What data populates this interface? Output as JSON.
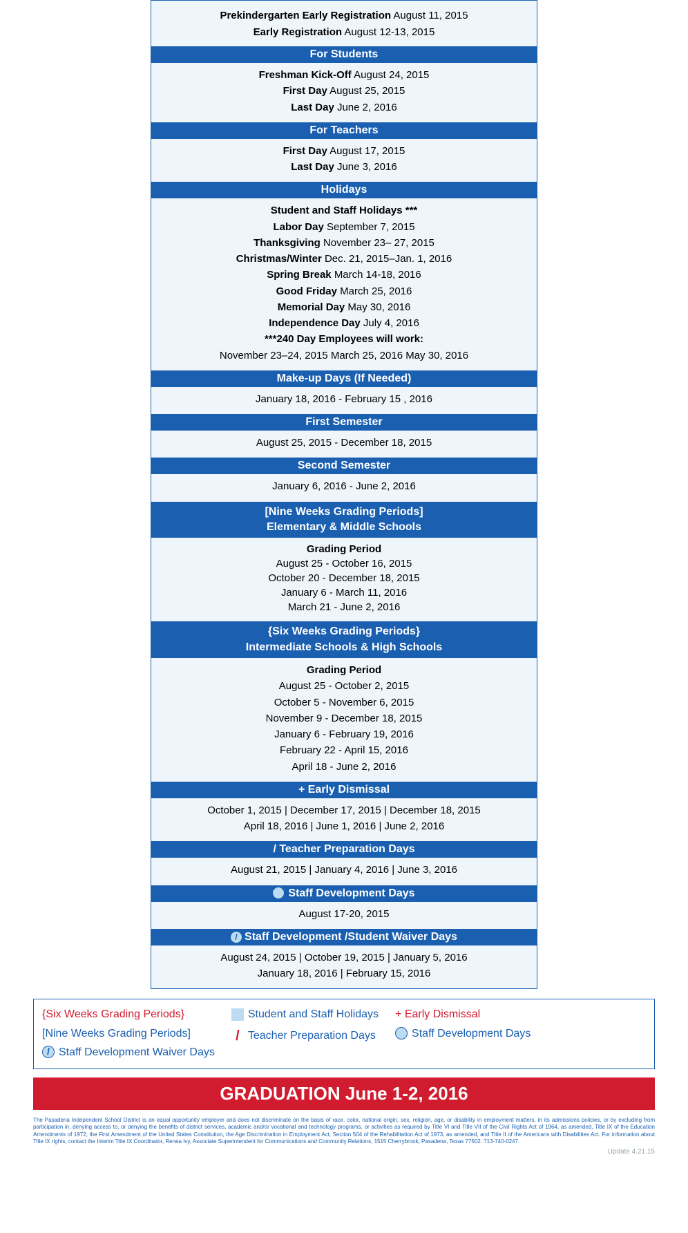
{
  "colors": {
    "header_bg": "#1a5fb0",
    "header_text": "#ffffff",
    "body_bg": "#eef5fb",
    "accent_red": "#d11b2e",
    "swatch_light_blue": "#bcdcf2",
    "text_blue": "#1a5fb0",
    "fineprint": "#1a5fb0",
    "update_gray": "#9aa5af"
  },
  "top": {
    "line1_label": "Prekindergarten Early Registration",
    "line1_value": "August 11, 2015",
    "line2_label": "Early Registration",
    "line2_value": "August 12-13, 2015"
  },
  "for_students": {
    "title": "For Students",
    "rows": [
      {
        "label": "Freshman Kick-Off",
        "value": "August 24, 2015"
      },
      {
        "label": "First Day",
        "value": "August 25, 2015"
      },
      {
        "label": "Last Day",
        "value": "June 2, 2016"
      }
    ]
  },
  "for_teachers": {
    "title": "For Teachers",
    "rows": [
      {
        "label": "First Day",
        "value": "August 17, 2015"
      },
      {
        "label": "Last Day",
        "value": "June 3, 2016"
      }
    ]
  },
  "holidays": {
    "title": "Holidays",
    "subhead": "Student and Staff Holidays ***",
    "rows": [
      {
        "label": "Labor Day",
        "value": "September 7, 2015"
      },
      {
        "label": "Thanksgiving",
        "value": "November 23– 27, 2015"
      },
      {
        "label": "Christmas/Winter",
        "value": "Dec. 21, 2015–Jan. 1, 2016"
      },
      {
        "label": "Spring Break",
        "value": "March 14-18, 2016"
      },
      {
        "label": "Good Friday",
        "value": "March 25, 2016"
      },
      {
        "label": "Memorial Day",
        "value": "May 30, 2016"
      },
      {
        "label": "Independence Day",
        "value": "July 4, 2016"
      }
    ],
    "note_label": "***240 Day Employees will work:",
    "note_value": "November 23–24, 2015  March 25, 2016  May 30, 2016"
  },
  "makeup": {
    "title": "Make-up Days (If Needed)",
    "body": "January 18, 2016 - February 15 , 2016"
  },
  "first_sem": {
    "title": "First Semester",
    "body": "August 25, 2015 - December 18, 2015"
  },
  "second_sem": {
    "title": "Second Semester",
    "body": "January 6, 2016 - June 2, 2016"
  },
  "nine_weeks": {
    "title_line1": "[Nine Weeks Grading Periods]",
    "title_line2": "Elementary & Middle Schools",
    "subhead": "Grading Period",
    "rows": [
      "August 25 - October 16, 2015",
      "October 20 - December 18, 2015",
      "January 6 - March 11, 2016",
      "March 21 - June 2, 2016"
    ]
  },
  "six_weeks": {
    "title_line1": "{Six Weeks Grading Periods}",
    "title_line2": "Intermediate Schools & High Schools",
    "subhead": "Grading Period",
    "rows": [
      "August 25 - October 2, 2015",
      "October 5 - November 6, 2015",
      "November 9 - December 18, 2015",
      "January 6  - February 19, 2016",
      "February 22 - April 15, 2016",
      "April 18 - June 2, 2016"
    ]
  },
  "early_dismissal": {
    "title": "+ Early Dismissal",
    "rows": [
      "October 1, 2015 | December 17, 2015 | December 18, 2015",
      "April 18, 2016 | June 1, 2016 | June 2, 2016"
    ]
  },
  "teacher_prep": {
    "title": "/ Teacher Preparation Days",
    "body": "August 21, 2015  |  January 4, 2016  |  June 3, 2016"
  },
  "staff_dev": {
    "title": "Staff Development Days",
    "body": "August 17-20, 2015"
  },
  "waiver": {
    "title": "Staff Development /Student Waiver Days",
    "rows": [
      "August 24, 2015  |  October 19, 2015 | January 5, 2016",
      "January 18, 2016  |  February 15, 2016"
    ]
  },
  "legend": {
    "six_weeks": "{Six Weeks Grading Periods}",
    "nine_weeks": "[Nine Weeks Grading Periods]",
    "waiver": "Staff Development Waiver Days",
    "holidays": "Student and Staff Holidays",
    "teacher_prep": "Teacher Preparation Days",
    "early": "+ Early Dismissal",
    "staff_dev": "Staff Development Days"
  },
  "graduation": "GRADUATION June 1-2, 2016",
  "fineprint": "The Pasadena Independent School District is an equal opportunity employer and does not discriminate on the basis of race, color, national origin, sex, religion, age, or disability in employment matters, in its admissions policies, or by excluding from participation in, denying access to, or denying the benefits of district services, academic and/or vocational and technology programs, or activities as required by Title VI and Title VII of the Civil Rights Act of 1964, as amended, Title IX of the Education Amendments of 1972, the First Amendment of the United States Constitution, the Age Discrimination in Employment Act, Section 504 of the Rehabilitation Act of 1973, as amended, and Title II of the Americans with Disabilities Act. For information about Title IX rights, contact the Interim Title IX Coordinator, Renea Ivy, Associate Superintendent for Communications and Community Relations, 1515 Cherrybrook, Pasadena, Texas 77502. 713-740-0247.",
  "update": "Update 4.21.15"
}
